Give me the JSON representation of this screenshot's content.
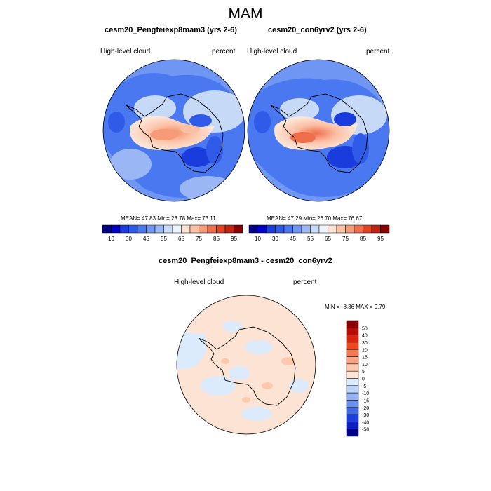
{
  "figure": {
    "title": "MAM"
  },
  "panels": [
    {
      "title": "cesm20_Pengfeiexp8mam3 (yrs 2-6)",
      "left_label": "High-level cloud",
      "right_label": "percent",
      "stats": "MEAN=  47.83  Min=  23.78  Max=  73.11"
    },
    {
      "title": "cesm20_con6yrv2 (yrs 2-6)",
      "left_label": "High-level cloud",
      "right_label": "percent",
      "stats": "MEAN=  47.29  Min=  26.70  Max=  76.67"
    }
  ],
  "diff_panel": {
    "title": "cesm20_Pengfeiexp8mam3 - cesm20_con6yrv2",
    "left_label": "High-level cloud",
    "right_label": "percent",
    "minmax": "MIN =  -8.36 MAX =   9.79"
  },
  "colorbar_top": {
    "colors": [
      "#00008b",
      "#0000cd",
      "#1a3cdc",
      "#2f5be8",
      "#4a78f0",
      "#6e96f2",
      "#9ab6f5",
      "#c6d9f7",
      "#eef4ff",
      "#fde0d0",
      "#fbbfa4",
      "#f79a78",
      "#f06e4a",
      "#e34524",
      "#c42210",
      "#8b0000"
    ],
    "tick_labels": [
      "10",
      "30",
      "45",
      "55",
      "65",
      "75",
      "85",
      "95"
    ]
  },
  "colorbar_diff": {
    "colors": [
      "#8b0000",
      "#b50e00",
      "#d9260a",
      "#f04a1c",
      "#f7784f",
      "#fba481",
      "#fcc9ae",
      "#fde3d4",
      "#dcebfb",
      "#bcd4f8",
      "#92b2f3",
      "#6a90ee",
      "#4069e8",
      "#1a3fdc",
      "#0a1fc2",
      "#00008b"
    ],
    "tick_labels": [
      "50",
      "40",
      "30",
      "20",
      "15",
      "10",
      "5",
      "0",
      "-5",
      "-10",
      "-15",
      "-20",
      "-30",
      "-40",
      "-50"
    ]
  }
}
